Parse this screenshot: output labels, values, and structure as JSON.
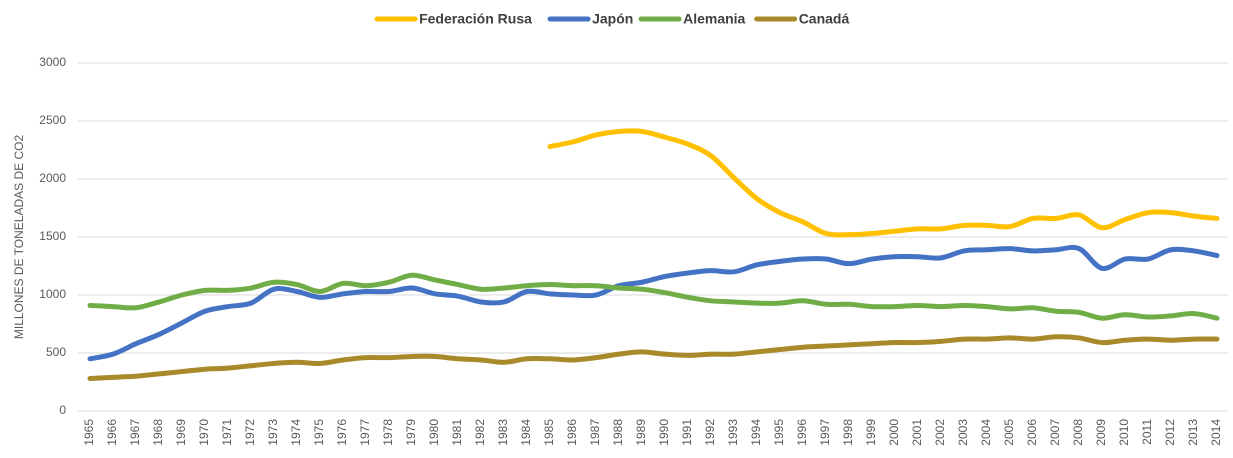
{
  "chart_data": {
    "type": "line",
    "y_label": "MILLONES DE TONELADAS DE CO2",
    "categories": [
      "1965",
      "1966",
      "1967",
      "1968",
      "1969",
      "1970",
      "1971",
      "1972",
      "1973",
      "1974",
      "1975",
      "1976",
      "1977",
      "1978",
      "1979",
      "1980",
      "1981",
      "1982",
      "1983",
      "1984",
      "1985",
      "1986",
      "1987",
      "1988",
      "1989",
      "1990",
      "1991",
      "1992",
      "1993",
      "1994",
      "1995",
      "1996",
      "1997",
      "1998",
      "1999",
      "2000",
      "2001",
      "2002",
      "2003",
      "2004",
      "2005",
      "2006",
      "2007",
      "2008",
      "2009",
      "2010",
      "2011",
      "2012",
      "2013",
      "2014"
    ],
    "series": [
      {
        "name": "Federación Rusa",
        "color": "#ffc000",
        "values": [
          null,
          null,
          null,
          null,
          null,
          null,
          null,
          null,
          null,
          null,
          null,
          null,
          null,
          null,
          null,
          null,
          null,
          null,
          null,
          null,
          2280,
          2320,
          2380,
          2410,
          2410,
          2360,
          2300,
          2200,
          2010,
          1830,
          1710,
          1630,
          1530,
          1520,
          1530,
          1550,
          1570,
          1570,
          1600,
          1600,
          1590,
          1660,
          1660,
          1690,
          1580,
          1650,
          1710,
          1710,
          1680,
          1660
        ]
      },
      {
        "name": "Japón",
        "color": "#4472c4",
        "values": [
          450,
          490,
          580,
          660,
          760,
          860,
          900,
          930,
          1050,
          1030,
          980,
          1010,
          1030,
          1030,
          1060,
          1010,
          990,
          940,
          940,
          1030,
          1010,
          1000,
          1000,
          1080,
          1110,
          1160,
          1190,
          1210,
          1200,
          1260,
          1290,
          1310,
          1310,
          1270,
          1310,
          1330,
          1330,
          1320,
          1380,
          1390,
          1400,
          1380,
          1390,
          1400,
          1230,
          1310,
          1310,
          1390,
          1380,
          1340
        ]
      },
      {
        "name": "Alemania",
        "color": "#70ad47",
        "values": [
          910,
          900,
          890,
          940,
          1000,
          1040,
          1040,
          1060,
          1110,
          1090,
          1030,
          1100,
          1080,
          1110,
          1170,
          1130,
          1090,
          1050,
          1060,
          1080,
          1090,
          1080,
          1080,
          1060,
          1050,
          1020,
          980,
          950,
          940,
          930,
          930,
          950,
          920,
          920,
          900,
          900,
          910,
          900,
          910,
          900,
          880,
          890,
          860,
          850,
          800,
          830,
          810,
          820,
          840,
          800
        ]
      },
      {
        "name": "Canadá",
        "color": "#a88a2b",
        "values": [
          280,
          290,
          300,
          320,
          340,
          360,
          370,
          390,
          410,
          420,
          410,
          440,
          460,
          460,
          470,
          470,
          450,
          440,
          420,
          450,
          450,
          440,
          460,
          490,
          510,
          490,
          480,
          490,
          490,
          510,
          530,
          550,
          560,
          570,
          580,
          590,
          590,
          600,
          620,
          620,
          630,
          620,
          640,
          630,
          590,
          610,
          620,
          610,
          620,
          620
        ]
      }
    ],
    "ylim": [
      0,
      3000
    ],
    "yticks": [
      0,
      500,
      1000,
      1500,
      2000,
      2500,
      3000
    ],
    "grid": true,
    "legend": "top"
  }
}
